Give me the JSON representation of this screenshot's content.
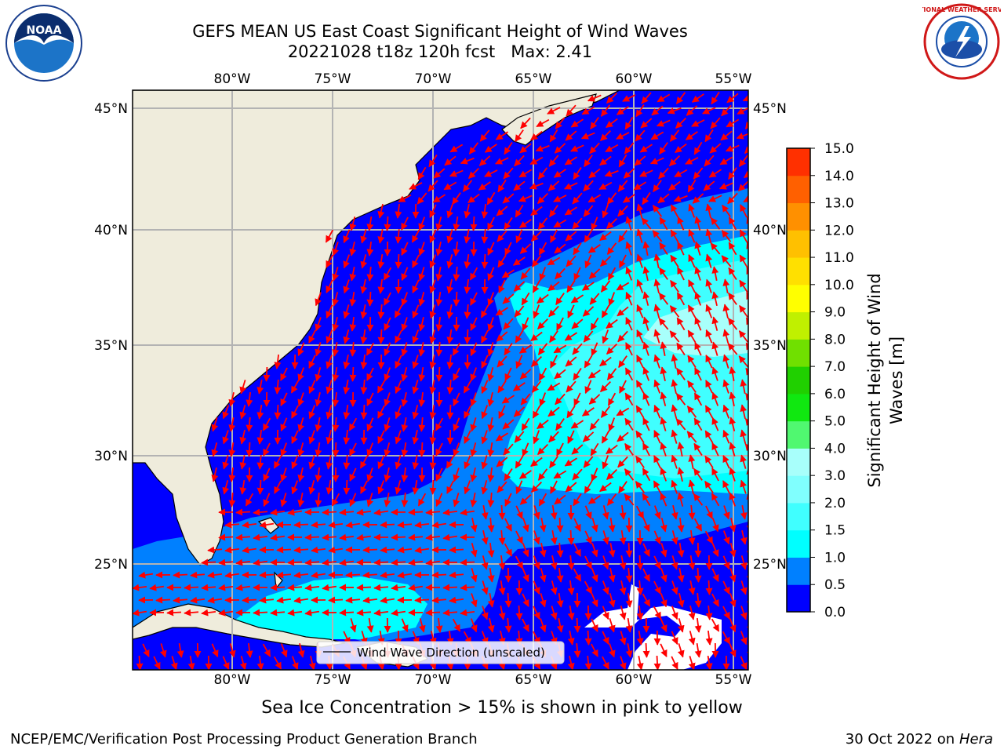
{
  "title": {
    "line1": "GEFS MEAN US East Coast Significant Height of Wind Waves",
    "line2": "20221028 t18z 120h fcst   Max: 2.41"
  },
  "map": {
    "lon_labels": [
      "80°W",
      "75°W",
      "70°W",
      "65°W",
      "60°W",
      "55°W"
    ],
    "lat_labels": [
      "45°N",
      "40°N",
      "35°N",
      "30°N",
      "25°N"
    ],
    "legend_label": "Wind Wave Direction (unscaled)",
    "colors": {
      "land": "#efecdc",
      "ocean_low": "#0000ff",
      "ocean_mid": "#0080ff",
      "ocean_hi": "#00ffff",
      "ocean_hi2": "#40ffff",
      "ocean_top": "#a8fffb",
      "arrow": "#ff0000",
      "grid": "#b3b3b3"
    }
  },
  "colorbar": {
    "title": "Significant Height of Wind Waves [m]",
    "title_line1": "Significant Height of Wind",
    "title_line2": "Waves [m]",
    "ticks": [
      "0.0",
      "0.5",
      "1.0",
      "1.5",
      "2.0",
      "3.0",
      "4.0",
      "5.0",
      "6.0",
      "7.0",
      "8.0",
      "9.0",
      "10.0",
      "11.0",
      "12.0",
      "13.0",
      "14.0",
      "15.0"
    ],
    "colors": [
      "#0000ff",
      "#0080ff",
      "#00ffff",
      "#40ffff",
      "#80fffe",
      "#a8fffb",
      "#50f870",
      "#10e810",
      "#20d000",
      "#70e000",
      "#c0f000",
      "#ffff00",
      "#ffe000",
      "#ffc000",
      "#ff9000",
      "#ff6000",
      "#ff3000"
    ]
  },
  "notes": {
    "ice": "Sea Ice Concentration > 15% is shown in pink to yellow"
  },
  "footer": {
    "left": "NCEP/EMC/Verification Post Processing Product Generation Branch",
    "right_prefix": "30 Oct 2022 on ",
    "right_machine": "Hera"
  },
  "logos": {
    "noaa": "NOAA",
    "nws": "NATIONAL WEATHER SERVICE"
  }
}
